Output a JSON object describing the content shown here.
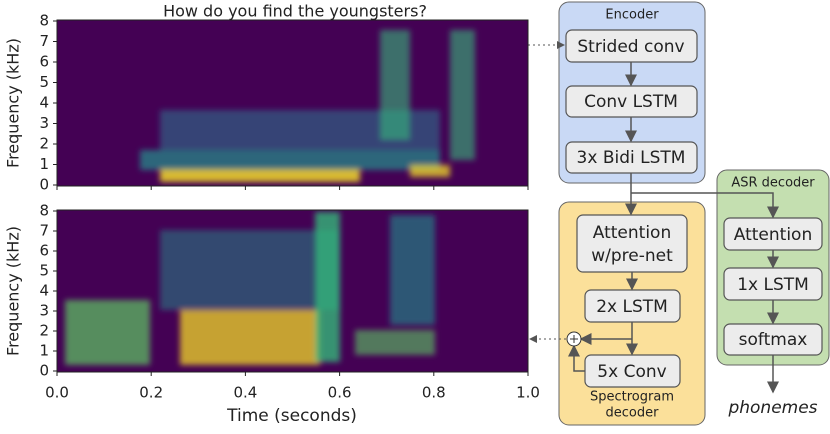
{
  "figure": {
    "title": "How do you find the youngsters?",
    "panels": [
      {
        "y_label": "Frequency (kHz)",
        "yticks": [
          0,
          1,
          2,
          3,
          4,
          5,
          6,
          7,
          8
        ]
      },
      {
        "y_label": "Frequency (kHz)",
        "yticks": [
          0,
          1,
          2,
          3,
          4,
          5,
          6,
          7,
          8
        ]
      }
    ],
    "xticks": [
      {
        "value": 0,
        "label": "0.0"
      },
      {
        "value": 0.2,
        "label": "0.2"
      },
      {
        "value": 0.4,
        "label": "0.4"
      },
      {
        "value": 0.6,
        "label": "0.6"
      },
      {
        "value": 0.8,
        "label": "0.8"
      },
      {
        "value": 1,
        "label": "1.0"
      }
    ],
    "x_label": "Time (seconds)"
  },
  "encoder": {
    "title": "Encoder",
    "blocks": [
      "Strided conv",
      "Conv LSTM",
      "3x Bidi LSTM"
    ]
  },
  "asr_decoder": {
    "title": "ASR decoder",
    "blocks": [
      "Attention",
      "1x LSTM",
      "softmax"
    ],
    "output": "phonemes"
  },
  "spectrogram_decoder": {
    "title_lines": [
      "Spectrogram",
      "decoder"
    ],
    "blocks": [
      "Attention",
      "w/pre-net",
      "2x LSTM",
      "5x Conv"
    ]
  }
}
